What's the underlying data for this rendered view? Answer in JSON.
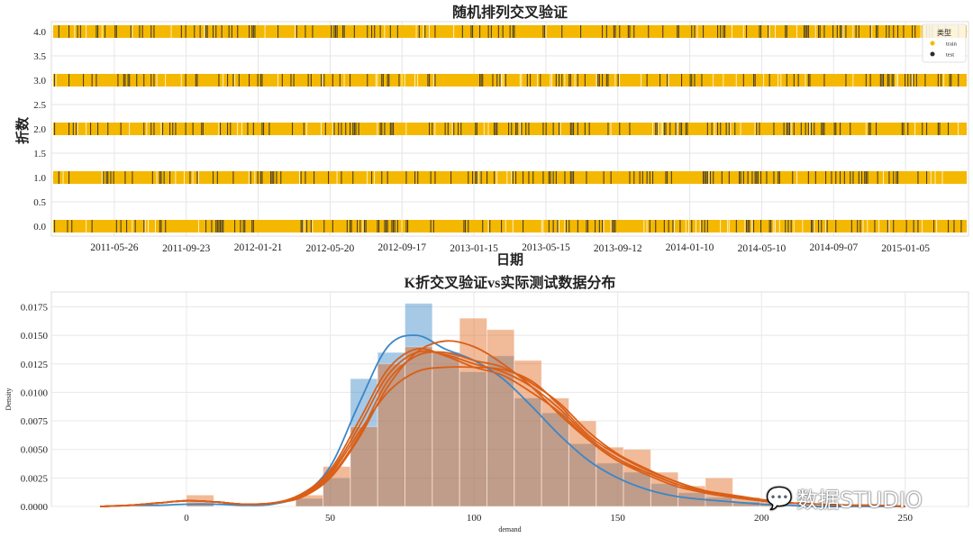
{
  "chart_data": [
    {
      "type": "scatter",
      "title": "随机排列交叉验证",
      "xlabel": "日期",
      "ylabel": "折数",
      "yticks": [
        "0.0",
        "0.5",
        "1.0",
        "1.5",
        "2.0",
        "2.5",
        "3.0",
        "3.5",
        "4.0"
      ],
      "ylim": [
        -0.2,
        4.2
      ],
      "xticks": [
        "2011-05-26",
        "2011-09-23",
        "2012-01-21",
        "2012-05-20",
        "2012-09-17",
        "2013-01-15",
        "2013-05-15",
        "2013-09-12",
        "2014-01-10",
        "2014-05-10",
        "2014-09-07",
        "2015-01-05"
      ],
      "xlim": [
        "2011-02-10",
        "2015-04-20"
      ],
      "folds": [
        0,
        1,
        2,
        3,
        4
      ],
      "test_fraction": 0.2,
      "colors": {
        "train": "#f5b800",
        "test": "#2b2b2b"
      },
      "legend": {
        "title": "类型",
        "entries": [
          "train",
          "test"
        ],
        "placement": "top-right"
      }
    },
    {
      "type": "histogram",
      "title": "K折交叉验证vs实际测试数据分布",
      "xlabel": "demand",
      "ylabel": "Density",
      "xticks": [
        "0",
        "50",
        "100",
        "150",
        "200",
        "250"
      ],
      "xtick_values": [
        0,
        50,
        100,
        150,
        200,
        250
      ],
      "yticks": [
        "0.0000",
        "0.0025",
        "0.0050",
        "0.0075",
        "0.0100",
        "0.0125",
        "0.0150",
        "0.0175"
      ],
      "ytick_values": [
        0,
        0.0025,
        0.005,
        0.0075,
        0.01,
        0.0125,
        0.015,
        0.0175
      ],
      "xlim": [
        -47,
        272
      ],
      "ylim": [
        0,
        0.0188
      ],
      "bin_width": 9.5,
      "test_hist": {
        "color": "#3a87c8",
        "bins": [
          0,
          38,
          47.5,
          57,
          66.5,
          76,
          85.5,
          95,
          104.5,
          114,
          123.5,
          133,
          142.5,
          152,
          161.5,
          171,
          180.5,
          190,
          199.5
        ],
        "values": [
          0.0002,
          0.0007,
          0.0025,
          0.0112,
          0.0135,
          0.0178,
          0.0135,
          0.0118,
          0.0132,
          0.0095,
          0.0082,
          0.0055,
          0.0038,
          0.003,
          0.002,
          0.0012,
          0.0008,
          0.0004,
          0.0002
        ]
      },
      "cv_hist": {
        "color": "#e0661a",
        "bins": [
          0,
          38,
          47.5,
          57,
          66.5,
          76,
          85.5,
          95,
          104.5,
          114,
          123.5,
          133,
          142.5,
          152,
          161.5,
          171,
          180.5,
          190,
          199.5
        ],
        "values": [
          0.001,
          0.001,
          0.0035,
          0.007,
          0.0125,
          0.014,
          0.0135,
          0.0165,
          0.0155,
          0.0128,
          0.0095,
          0.0075,
          0.0052,
          0.005,
          0.003,
          0.0018,
          0.0025,
          0.0008,
          0.0005
        ]
      },
      "kde_x": [
        -30,
        -20,
        -10,
        0,
        10,
        20,
        30,
        40,
        50,
        60,
        70,
        80,
        90,
        100,
        110,
        120,
        130,
        140,
        150,
        160,
        170,
        180,
        190,
        200,
        210,
        220,
        230,
        240,
        250
      ],
      "test_kde": [
        0,
        0.0001,
        0.0001,
        0.0002,
        0.0002,
        0.0001,
        0.0002,
        0.001,
        0.0035,
        0.009,
        0.014,
        0.015,
        0.0138,
        0.0128,
        0.0112,
        0.0088,
        0.0062,
        0.004,
        0.0025,
        0.0015,
        0.0009,
        0.0006,
        0.0004,
        0.0002,
        0.0001,
        0,
        0,
        0,
        0
      ],
      "cv_kdes": [
        [
          0,
          0.0001,
          0.0003,
          0.0005,
          0.0004,
          0.0002,
          0.0003,
          0.001,
          0.003,
          0.007,
          0.0115,
          0.0135,
          0.0133,
          0.0125,
          0.0118,
          0.0105,
          0.0085,
          0.006,
          0.0042,
          0.003,
          0.002,
          0.0013,
          0.0009,
          0.0005,
          0.0003,
          0.0002,
          0.0001,
          0.0001,
          0
        ],
        [
          0,
          0.0001,
          0.0003,
          0.0005,
          0.0004,
          0.0002,
          0.0003,
          0.0008,
          0.0025,
          0.006,
          0.0105,
          0.0135,
          0.0145,
          0.014,
          0.0125,
          0.0105,
          0.008,
          0.0058,
          0.004,
          0.0028,
          0.0018,
          0.0012,
          0.0008,
          0.0005,
          0.0003,
          0.0002,
          0.0001,
          0.0001,
          0
        ],
        [
          0,
          0.0001,
          0.0003,
          0.0005,
          0.0004,
          0.0002,
          0.0003,
          0.0009,
          0.0028,
          0.0065,
          0.01,
          0.0118,
          0.0122,
          0.0122,
          0.012,
          0.011,
          0.0088,
          0.0062,
          0.0045,
          0.0032,
          0.0022,
          0.0014,
          0.001,
          0.0006,
          0.0003,
          0.0002,
          0.0001,
          0.0001,
          0
        ],
        [
          0,
          0.0001,
          0.0003,
          0.0005,
          0.0004,
          0.0002,
          0.0003,
          0.0011,
          0.0032,
          0.0075,
          0.012,
          0.0138,
          0.0132,
          0.0122,
          0.0115,
          0.01,
          0.0082,
          0.0058,
          0.004,
          0.003,
          0.002,
          0.0013,
          0.0008,
          0.0005,
          0.0003,
          0.0002,
          0.0001,
          0.0001,
          0
        ],
        [
          0,
          0.0001,
          0.0003,
          0.0005,
          0.0004,
          0.0002,
          0.0003,
          0.0009,
          0.0026,
          0.0062,
          0.011,
          0.0132,
          0.0135,
          0.0128,
          0.0122,
          0.0108,
          0.009,
          0.0065,
          0.0046,
          0.0033,
          0.0022,
          0.0014,
          0.0009,
          0.0006,
          0.0003,
          0.0002,
          0.0001,
          0.0001,
          0
        ]
      ],
      "kde_color": "#d95f18"
    }
  ],
  "watermark": "数据STUDIO"
}
